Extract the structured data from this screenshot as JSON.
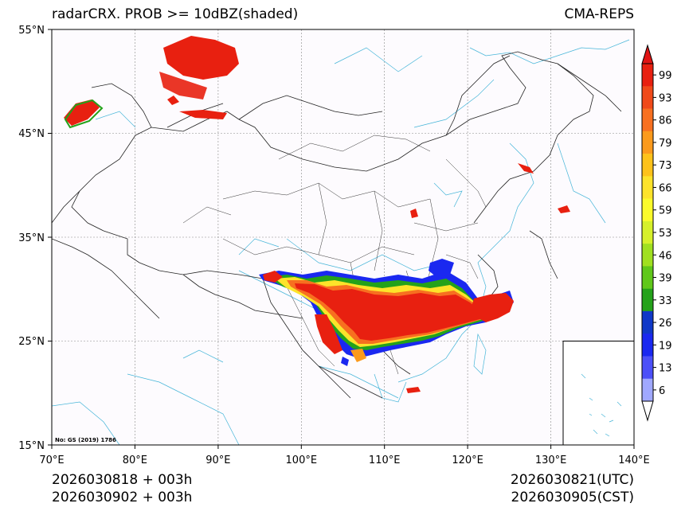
{
  "title": {
    "left": "radarCRX. PROB >= 10dBZ(shaded)",
    "right": "CMA-REPS"
  },
  "map": {
    "lon_range": [
      70,
      140
    ],
    "lat_range": [
      15,
      55
    ],
    "lon_ticks": [
      "70°E",
      "80°E",
      "90°E",
      "100°E",
      "110°E",
      "120°E",
      "130°E",
      "140°E"
    ],
    "lat_ticks": [
      "55°N",
      "45°N",
      "35°N",
      "25°N",
      "15°N"
    ],
    "gridlines": true,
    "inset": "South China Sea islands (bottom-right)",
    "footnote": "No: GS (2019) 1786"
  },
  "colorbar": {
    "levels": [
      "99",
      "93",
      "86",
      "79",
      "73",
      "66",
      "59",
      "53",
      "46",
      "39",
      "33",
      "26",
      "19",
      "13",
      "6"
    ],
    "colors": [
      "#e82010",
      "#f04a1a",
      "#f77020",
      "#fb9a1c",
      "#fdc21a",
      "#fde32a",
      "#fbfb2a",
      "#d6f02a",
      "#a0e020",
      "#60c81a",
      "#24a21a",
      "#1038c8",
      "#1a28f0",
      "#4c50f8",
      "#a0a8ff"
    ],
    "extend_max_color": "#e01414",
    "extend_min_color": "#ffffff"
  },
  "footer": {
    "init_utc": "2026030818  +  003h",
    "init_cst": "2026030902  +  003h",
    "valid_utc": "2026030821(UTC)",
    "valid_cst": "2026030905(CST)"
  }
}
